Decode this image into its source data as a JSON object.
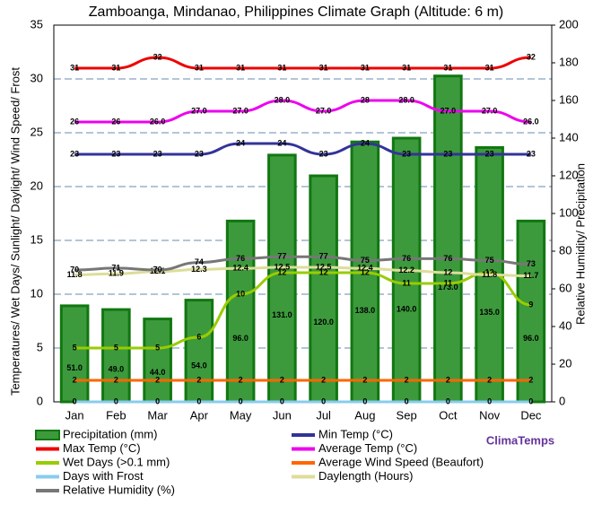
{
  "chart_data": {
    "type": "bar",
    "title": "Zamboanga, Mindanao, Philippines Climate Graph (Altitude: 6 m)",
    "y_label": "Temperatures/ Wet Days/ Sunlight/ Daylight/ Wind Speed/ Frost",
    "y2_label": "Relative Humidity/ Precipitation",
    "brand": "ClimaTemps",
    "categories": [
      "Jan",
      "Feb",
      "Mar",
      "Apr",
      "May",
      "Jun",
      "Jul",
      "Aug",
      "Sep",
      "Oct",
      "Nov",
      "Dec"
    ],
    "ylim": [
      0,
      35
    ],
    "yticks": [
      0,
      5,
      10,
      15,
      20,
      25,
      30,
      35
    ],
    "y2lim": [
      0,
      200
    ],
    "y2ticks": [
      0,
      20,
      40,
      60,
      80,
      100,
      120,
      140,
      160,
      180,
      200
    ],
    "grid": true,
    "series": [
      {
        "name": "Precipitation (mm)",
        "type": "bar",
        "axis": "y2",
        "color": "#3c9a3c",
        "values": [
          51,
          49,
          44,
          54,
          96,
          131,
          120,
          138,
          140,
          173,
          135,
          96
        ],
        "value_labels": [
          "51.0",
          "49.0",
          "44.0",
          "54.0",
          "96.0",
          "131.0",
          "120.0",
          "138.0",
          "140.0",
          "173.0",
          "135.0",
          "96.0"
        ]
      },
      {
        "name": "Min Temp (°C)",
        "type": "line",
        "color": "#333399",
        "values": [
          23,
          23,
          23,
          23,
          24,
          24,
          23,
          24,
          23,
          23,
          23,
          23
        ]
      },
      {
        "name": "Max Temp (°C)",
        "type": "line",
        "color": "#ee0000",
        "values": [
          31,
          31,
          32,
          31,
          31,
          31,
          31,
          31,
          31,
          31,
          31,
          32
        ]
      },
      {
        "name": "Average Temp (°C)",
        "type": "line",
        "color": "#ee00ee",
        "values": [
          26,
          26,
          26,
          27,
          27,
          28,
          27,
          28,
          28,
          27,
          27,
          26
        ],
        "value_labels": [
          "26",
          "26",
          "26.0",
          "27.0",
          "27.0",
          "28.0",
          "27.0",
          "28",
          "28.0",
          "27.0",
          "27.0",
          "26.0"
        ]
      },
      {
        "name": "Wet Days (>0.1 mm)",
        "type": "line",
        "color": "#99cc00",
        "values": [
          5,
          5,
          5,
          6,
          10,
          12,
          12,
          12,
          11,
          11,
          12,
          9
        ]
      },
      {
        "name": "Average Wind Speed (Beaufort)",
        "type": "line",
        "color": "#ff6600",
        "values": [
          2,
          2,
          2,
          2,
          2,
          2,
          2,
          2,
          2,
          2,
          2,
          2
        ]
      },
      {
        "name": "Days with Frost",
        "type": "line",
        "color": "#88ccee",
        "values": [
          0,
          0,
          0,
          0,
          0,
          0,
          0,
          0,
          0,
          0,
          0,
          0
        ]
      },
      {
        "name": "Daylength (Hours)",
        "type": "line",
        "color": "#dddd99",
        "values": [
          11.8,
          11.9,
          12.1,
          12.3,
          12.4,
          12.5,
          12.5,
          12.4,
          12.2,
          12.0,
          11.8,
          11.7
        ]
      },
      {
        "name": "Relative Humidity (%)",
        "type": "line",
        "axis": "y2",
        "color": "#777777",
        "values": [
          70,
          71,
          70,
          74,
          76,
          77,
          77,
          75,
          76,
          76,
          75,
          73
        ]
      }
    ]
  }
}
